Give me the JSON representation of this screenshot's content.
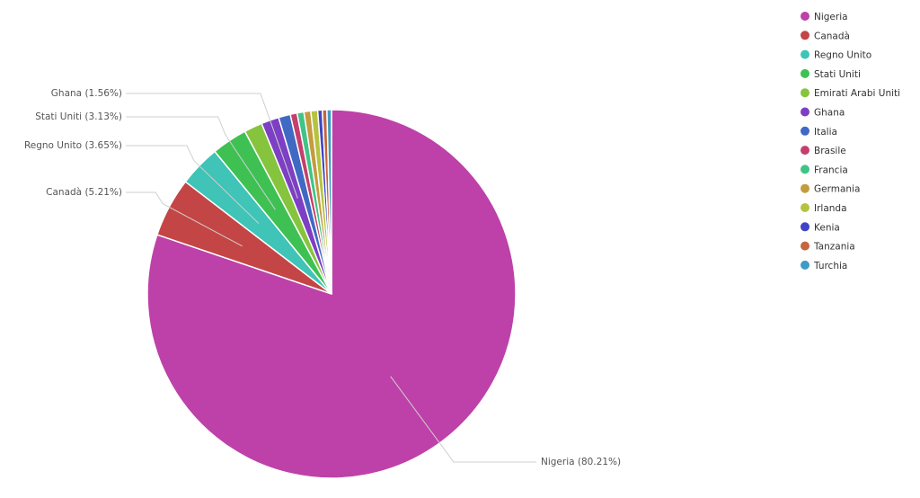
{
  "chart_data": {
    "type": "pie",
    "slices": [
      {
        "name": "Nigeria",
        "value": 80.21,
        "label": "Nigeria (80.21%)",
        "color": "#bd41a8"
      },
      {
        "name": "Canadà",
        "value": 5.21,
        "label": "Canadà (5.21%)",
        "color": "#c44545"
      },
      {
        "name": "Regno Unito",
        "value": 3.65,
        "label": "Regno Unito (3.65%)",
        "color": "#3fc4b7"
      },
      {
        "name": "Stati Uniti",
        "value": 3.13,
        "label": "Stati Uniti (3.13%)",
        "color": "#3ec152"
      },
      {
        "name": "Emirati Arabi Uniti",
        "value": 1.6,
        "label": "",
        "color": "#86c43e"
      },
      {
        "name": "Ghana",
        "value": 1.56,
        "label": "Ghana (1.56%)",
        "color": "#7d3fc4"
      },
      {
        "name": "Italia",
        "value": 1.04,
        "label": "",
        "color": "#4069c4"
      },
      {
        "name": "Brasile",
        "value": 0.6,
        "label": "",
        "color": "#c43f6c"
      },
      {
        "name": "Francia",
        "value": 0.6,
        "label": "",
        "color": "#3fc486"
      },
      {
        "name": "Germania",
        "value": 0.6,
        "label": "",
        "color": "#c49b3f"
      },
      {
        "name": "Irlanda",
        "value": 0.6,
        "label": "",
        "color": "#b5c43f"
      },
      {
        "name": "Kenia",
        "value": 0.4,
        "label": "",
        "color": "#3f45c4"
      },
      {
        "name": "Tanzania",
        "value": 0.4,
        "label": "",
        "color": "#c4663f"
      },
      {
        "name": "Turchia",
        "value": 0.4,
        "label": "",
        "color": "#3f9bc4"
      }
    ],
    "legend_position": "top-right"
  }
}
